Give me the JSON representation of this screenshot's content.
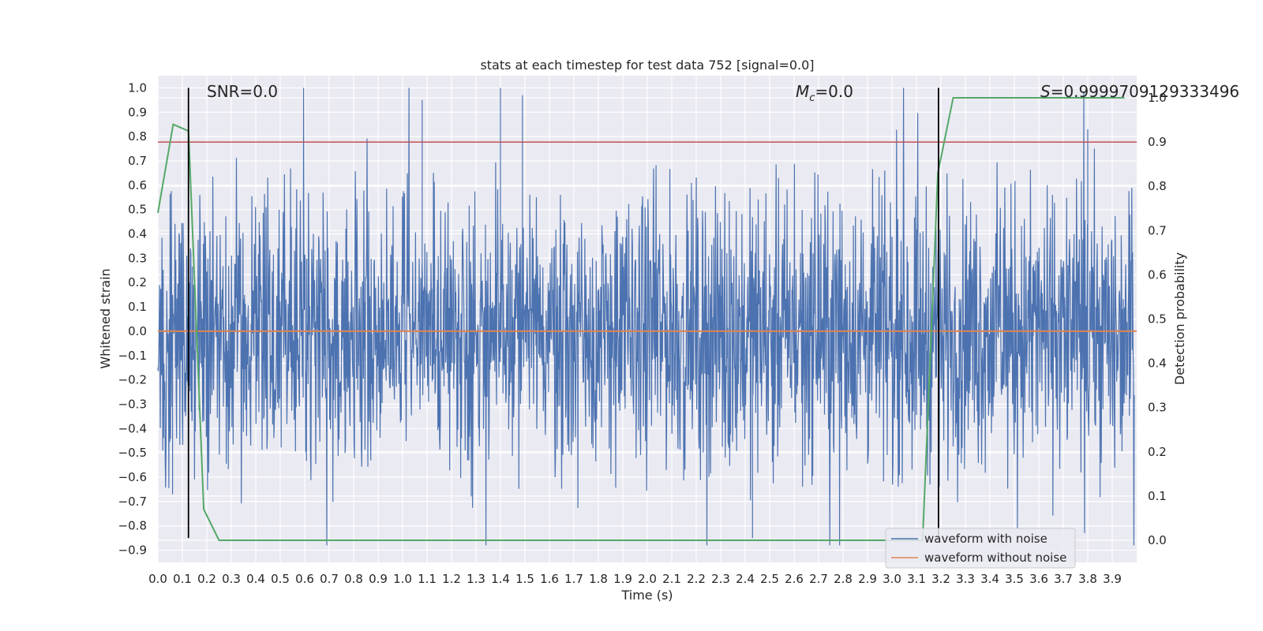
{
  "chart_data": {
    "type": "line",
    "title": "stats at each timestep for test data 752 [signal=0.0]",
    "xlabel": "Time (s)",
    "ylabel": "Whitened strain",
    "y2label": "Detection probability",
    "xlim": [
      0.0,
      4.0
    ],
    "ylim": [
      -0.95,
      1.05
    ],
    "y2lim": [
      -0.05,
      1.05
    ],
    "xticks": [
      "0.0",
      "0.1",
      "0.2",
      "0.3",
      "0.4",
      "0.5",
      "0.6",
      "0.7",
      "0.8",
      "0.9",
      "1.0",
      "1.1",
      "1.2",
      "1.3",
      "1.4",
      "1.5",
      "1.6",
      "1.7",
      "1.8",
      "1.9",
      "2.0",
      "2.1",
      "2.2",
      "2.3",
      "2.4",
      "2.5",
      "2.6",
      "2.7",
      "2.8",
      "2.9",
      "3.0",
      "3.1",
      "3.2",
      "3.3",
      "3.4",
      "3.5",
      "3.6",
      "3.7",
      "3.8",
      "3.9"
    ],
    "yticks": [
      "1.0",
      "0.9",
      "0.8",
      "0.7",
      "0.6",
      "0.5",
      "0.4",
      "0.3",
      "0.2",
      "0.1",
      "0.0",
      "−0.1",
      "−0.2",
      "−0.3",
      "−0.4",
      "−0.5",
      "−0.6",
      "−0.7",
      "−0.8",
      "−0.9"
    ],
    "y2ticks": [
      "1.0",
      "0.9",
      "0.8",
      "0.7",
      "0.6",
      "0.5",
      "0.4",
      "0.3",
      "0.2",
      "0.1",
      "0.0"
    ],
    "annotations": {
      "snr": "SNR=0.0",
      "mc_symbol": "M",
      "mc_sub": "c",
      "mc_value": "=0.0",
      "s_symbol": "S",
      "s_value": "=0.9999709129333496"
    },
    "vlines_x": [
      0.125,
      3.19
    ],
    "threshold_y2": 0.9,
    "series": [
      {
        "name": "waveform with noise",
        "color": "#4c72b0",
        "kind": "noise",
        "typical_range": [
          -0.45,
          0.45
        ],
        "extremes": [
          -0.88,
          1.0
        ]
      },
      {
        "name": "waveform without noise",
        "color": "#dd8452",
        "values_constant": 0.0
      },
      {
        "name": "detection probability",
        "color": "#55a868",
        "axis": "y2",
        "x": [
          0.0,
          0.0625,
          0.125,
          0.1875,
          0.25,
          0.3125,
          0.5,
          1.0,
          1.5,
          2.0,
          2.5,
          3.0,
          3.125,
          3.1875,
          3.25,
          3.5,
          3.75,
          3.95
        ],
        "values": [
          0.74,
          0.94,
          0.925,
          0.07,
          0.0,
          0.0,
          0.0,
          0.0,
          0.0,
          0.0,
          0.0,
          0.0,
          0.0,
          0.83,
          1.0,
          1.0,
          1.0,
          1.0
        ]
      },
      {
        "name": "threshold",
        "color": "#c44e52",
        "axis": "y2",
        "values_constant": 0.9
      }
    ],
    "legend": {
      "position": "lower-right",
      "entries": [
        "waveform with noise",
        "waveform without noise"
      ]
    }
  },
  "colors": {
    "background": "#eaeaf2",
    "grid": "#ffffff",
    "noise": "#4c72b0",
    "clean": "#dd8452",
    "prob": "#55a868",
    "threshold": "#c44e52",
    "vline": "#000000"
  }
}
